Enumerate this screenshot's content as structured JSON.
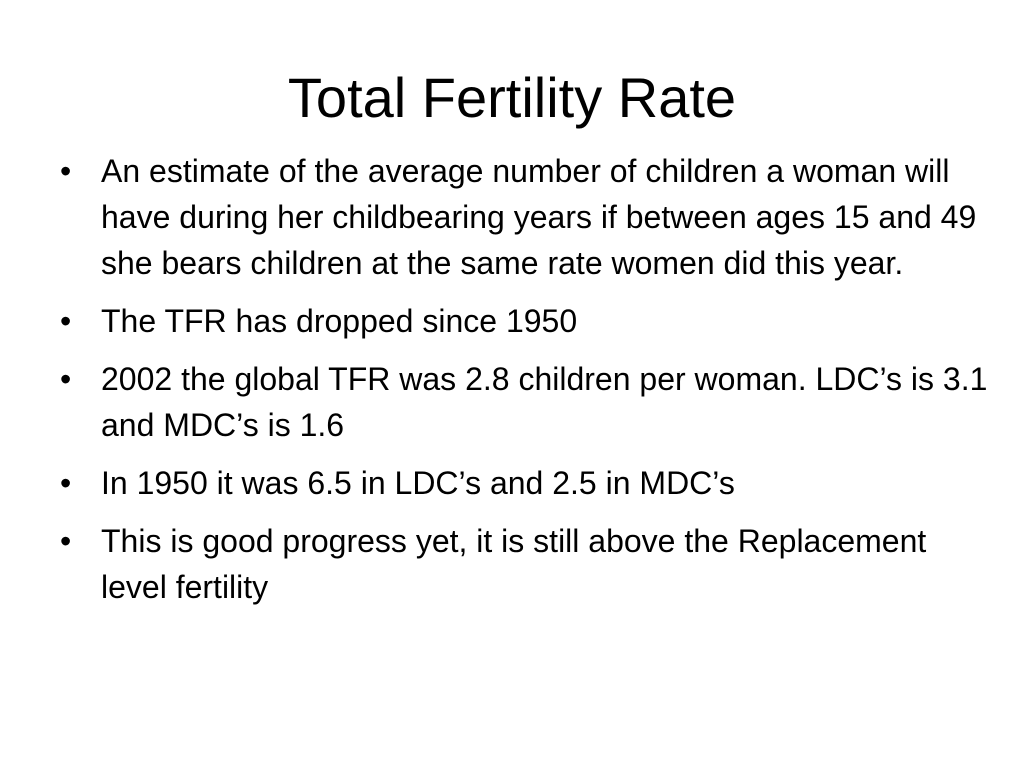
{
  "slide": {
    "title": "Total Fertility Rate",
    "bullets": [
      "An estimate of the average number of children a woman will have during her childbearing years if between ages 15 and 49 she bears children at the same rate women did this year.",
      "The TFR has dropped since 1950",
      "2002 the global TFR was 2.8 children per woman. LDC’s is 3.1 and MDC’s is 1.6",
      "In 1950 it was 6.5 in LDC’s and 2.5 in MDC’s",
      "This is good progress yet, it is still above the Replacement level fertility"
    ],
    "bullet_glyph": "•"
  }
}
